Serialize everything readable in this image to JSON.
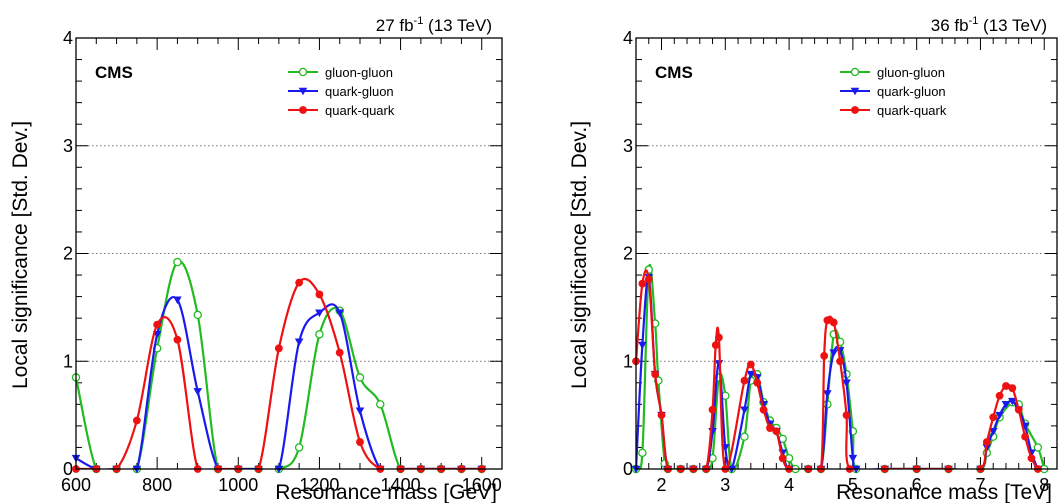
{
  "chart_data": [
    {
      "type": "line",
      "lumi_value": "27 fb",
      "lumi_exp": "-1",
      "lumi_energy": " (13 TeV)",
      "cms_label": "CMS",
      "xlabel": "Resonance mass [GeV]",
      "ylabel": "Local significance [Std. Dev.]",
      "xlim": [
        600,
        1650
      ],
      "ylim": [
        0,
        4
      ],
      "x_ticks": [
        600,
        800,
        1000,
        1200,
        1400,
        1600
      ],
      "y_ticks": [
        0,
        1,
        2,
        3,
        4
      ],
      "grid_y": true,
      "legend_position": "top-right",
      "series": [
        {
          "name": "gluon-gluon",
          "color": "#22bb22",
          "marker": "open-circle",
          "points": [
            [
              600,
              0.85
            ],
            [
              650,
              0
            ],
            [
              700,
              0
            ],
            [
              750,
              0
            ],
            [
              800,
              1.12
            ],
            [
              850,
              1.92
            ],
            [
              900,
              1.43
            ],
            [
              950,
              0
            ],
            [
              1000,
              0
            ],
            [
              1050,
              0
            ],
            [
              1100,
              0
            ],
            [
              1150,
              0.2
            ],
            [
              1200,
              1.25
            ],
            [
              1250,
              1.47
            ],
            [
              1300,
              0.85
            ],
            [
              1350,
              0.6
            ],
            [
              1400,
              0
            ],
            [
              1450,
              0
            ],
            [
              1500,
              0
            ],
            [
              1550,
              0
            ],
            [
              1600,
              0
            ]
          ]
        },
        {
          "name": "quark-gluon",
          "color": "#1a1aee",
          "marker": "down-triangle",
          "points": [
            [
              600,
              0.1
            ],
            [
              650,
              0
            ],
            [
              700,
              0
            ],
            [
              750,
              0
            ],
            [
              800,
              1.25
            ],
            [
              850,
              1.57
            ],
            [
              900,
              0.72
            ],
            [
              950,
              0
            ],
            [
              1000,
              0
            ],
            [
              1050,
              0
            ],
            [
              1100,
              0
            ],
            [
              1150,
              1.18
            ],
            [
              1200,
              1.45
            ],
            [
              1250,
              1.45
            ],
            [
              1300,
              0.54
            ],
            [
              1350,
              0
            ],
            [
              1400,
              0
            ],
            [
              1450,
              0
            ],
            [
              1500,
              0
            ],
            [
              1550,
              0
            ],
            [
              1600,
              0
            ]
          ]
        },
        {
          "name": "quark-quark",
          "color": "#ee1111",
          "marker": "filled-circle",
          "points": [
            [
              600,
              0
            ],
            [
              650,
              0
            ],
            [
              700,
              0
            ],
            [
              750,
              0.45
            ],
            [
              800,
              1.34
            ],
            [
              850,
              1.2
            ],
            [
              900,
              0
            ],
            [
              950,
              0
            ],
            [
              1000,
              0
            ],
            [
              1050,
              0
            ],
            [
              1100,
              1.12
            ],
            [
              1150,
              1.73
            ],
            [
              1200,
              1.62
            ],
            [
              1250,
              1.08
            ],
            [
              1300,
              0.25
            ],
            [
              1350,
              0
            ],
            [
              1400,
              0
            ],
            [
              1450,
              0
            ],
            [
              1500,
              0
            ],
            [
              1550,
              0
            ],
            [
              1600,
              0
            ]
          ]
        }
      ]
    },
    {
      "type": "line",
      "lumi_value": "36 fb",
      "lumi_exp": "-1",
      "lumi_energy": " (13 TeV)",
      "cms_label": "CMS",
      "xlabel": "Resonance mass [TeV]",
      "ylabel": "Local significance [Std. Dev.]",
      "xlim": [
        1.6,
        8.2
      ],
      "ylim": [
        0,
        4
      ],
      "x_ticks": [
        2,
        3,
        4,
        5,
        6,
        7,
        8
      ],
      "y_ticks": [
        0,
        1,
        2,
        3,
        4
      ],
      "grid_y": true,
      "legend_position": "top-right",
      "series": [
        {
          "name": "gluon-gluon",
          "color": "#22bb22",
          "marker": "open-circle",
          "points": [
            [
              1.6,
              0
            ],
            [
              1.7,
              0.15
            ],
            [
              1.8,
              1.85
            ],
            [
              1.9,
              1.35
            ],
            [
              1.95,
              0.82
            ],
            [
              2.05,
              0.05
            ],
            [
              2.1,
              0
            ],
            [
              2.3,
              0
            ],
            [
              2.5,
              0
            ],
            [
              2.7,
              0
            ],
            [
              2.8,
              0.1
            ],
            [
              2.9,
              0.85
            ],
            [
              3.0,
              0.68
            ],
            [
              3.1,
              0
            ],
            [
              3.3,
              0.3
            ],
            [
              3.4,
              0.82
            ],
            [
              3.5,
              0.88
            ],
            [
              3.6,
              0.62
            ],
            [
              3.7,
              0.45
            ],
            [
              3.8,
              0.38
            ],
            [
              3.9,
              0.28
            ],
            [
              4.0,
              0.1
            ],
            [
              4.1,
              0
            ],
            [
              4.3,
              0
            ],
            [
              4.5,
              0
            ],
            [
              4.6,
              0.6
            ],
            [
              4.7,
              1.25
            ],
            [
              4.8,
              1.18
            ],
            [
              4.9,
              0.88
            ],
            [
              5.0,
              0.35
            ],
            [
              5.05,
              0
            ],
            [
              5.5,
              0
            ],
            [
              6.0,
              0
            ],
            [
              6.5,
              0
            ],
            [
              7.0,
              0
            ],
            [
              7.1,
              0.15
            ],
            [
              7.2,
              0.3
            ],
            [
              7.3,
              0.48
            ],
            [
              7.5,
              0.62
            ],
            [
              7.6,
              0.6
            ],
            [
              7.7,
              0.42
            ],
            [
              7.9,
              0.2
            ],
            [
              8.0,
              0
            ]
          ]
        },
        {
          "name": "quark-gluon",
          "color": "#1a1aee",
          "marker": "down-triangle",
          "points": [
            [
              1.6,
              0
            ],
            [
              1.7,
              1.15
            ],
            [
              1.8,
              1.78
            ],
            [
              1.9,
              0.88
            ],
            [
              2.0,
              0.5
            ],
            [
              2.1,
              0
            ],
            [
              2.3,
              0
            ],
            [
              2.5,
              0
            ],
            [
              2.7,
              0
            ],
            [
              2.8,
              0.35
            ],
            [
              2.9,
              0.98
            ],
            [
              3.0,
              0.2
            ],
            [
              3.1,
              0
            ],
            [
              3.3,
              0.55
            ],
            [
              3.4,
              0.88
            ],
            [
              3.5,
              0.85
            ],
            [
              3.6,
              0.6
            ],
            [
              3.7,
              0.42
            ],
            [
              3.8,
              0.35
            ],
            [
              3.9,
              0.15
            ],
            [
              4.0,
              0
            ],
            [
              4.3,
              0
            ],
            [
              4.5,
              0
            ],
            [
              4.6,
              0.7
            ],
            [
              4.7,
              1.08
            ],
            [
              4.8,
              1.1
            ],
            [
              4.9,
              0.8
            ],
            [
              5.0,
              0.1
            ],
            [
              5.05,
              0
            ],
            [
              5.5,
              0
            ],
            [
              6.0,
              0
            ],
            [
              6.5,
              0
            ],
            [
              7.0,
              0
            ],
            [
              7.1,
              0.2
            ],
            [
              7.2,
              0.35
            ],
            [
              7.3,
              0.5
            ],
            [
              7.4,
              0.6
            ],
            [
              7.5,
              0.63
            ],
            [
              7.6,
              0.55
            ],
            [
              7.7,
              0.4
            ],
            [
              7.8,
              0.15
            ],
            [
              7.9,
              0
            ]
          ]
        },
        {
          "name": "quark-quark",
          "color": "#ee1111",
          "marker": "filled-circle",
          "points": [
            [
              1.6,
              1.0
            ],
            [
              1.7,
              1.72
            ],
            [
              1.8,
              1.76
            ],
            [
              1.9,
              0.88
            ],
            [
              2.0,
              0.5
            ],
            [
              2.1,
              0
            ],
            [
              2.3,
              0
            ],
            [
              2.5,
              0
            ],
            [
              2.7,
              0
            ],
            [
              2.8,
              0.55
            ],
            [
              2.85,
              1.15
            ],
            [
              2.9,
              1.22
            ],
            [
              3.0,
              0
            ],
            [
              3.3,
              0.82
            ],
            [
              3.4,
              0.97
            ],
            [
              3.5,
              0.8
            ],
            [
              3.6,
              0.55
            ],
            [
              3.7,
              0.38
            ],
            [
              3.8,
              0.35
            ],
            [
              3.9,
              0.1
            ],
            [
              4.0,
              0
            ],
            [
              4.3,
              0
            ],
            [
              4.5,
              0
            ],
            [
              4.55,
              1.05
            ],
            [
              4.6,
              1.38
            ],
            [
              4.7,
              1.36
            ],
            [
              4.8,
              1.0
            ],
            [
              4.9,
              0.5
            ],
            [
              4.95,
              0
            ],
            [
              5.5,
              0
            ],
            [
              6.0,
              0
            ],
            [
              6.5,
              0
            ],
            [
              7.0,
              0
            ],
            [
              7.1,
              0.25
            ],
            [
              7.2,
              0.48
            ],
            [
              7.3,
              0.68
            ],
            [
              7.4,
              0.77
            ],
            [
              7.5,
              0.75
            ],
            [
              7.6,
              0.55
            ],
            [
              7.7,
              0.3
            ],
            [
              7.8,
              0.1
            ],
            [
              7.9,
              0
            ]
          ]
        }
      ]
    }
  ]
}
